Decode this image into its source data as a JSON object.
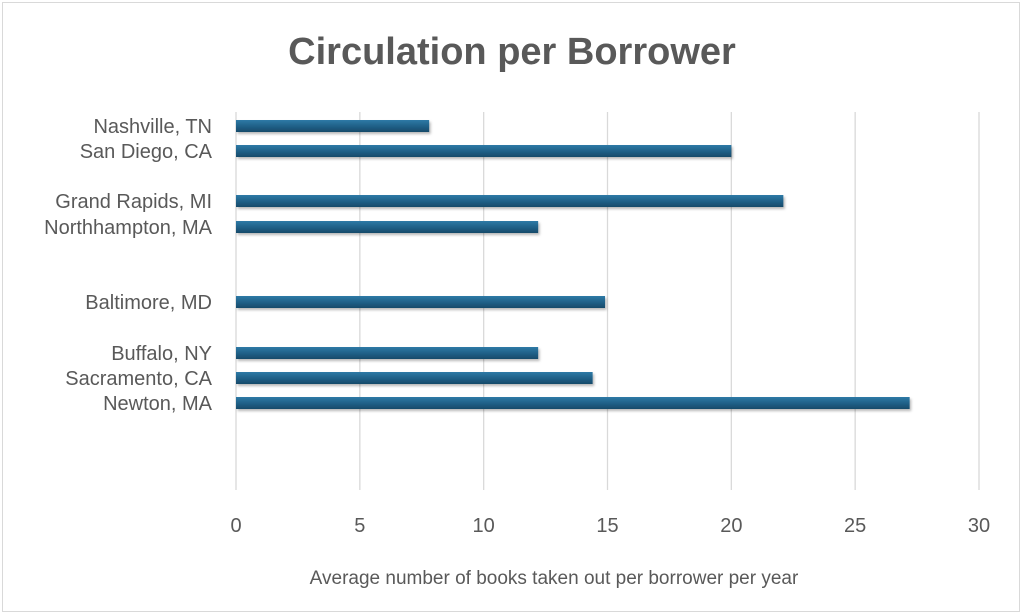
{
  "chart_data": {
    "type": "bar",
    "orientation": "horizontal",
    "title": "Circulation per Borrower",
    "xlabel": "Average number of books taken out per borrower per year",
    "ylabel": "",
    "xlim": [
      0,
      30
    ],
    "xticks": [
      0,
      5,
      10,
      15,
      20,
      25,
      30
    ],
    "grid": true,
    "legend": "none",
    "bar_color": "#1f5f86",
    "categories": [
      "Nashville, TN",
      "San Diego, CA",
      "Grand Rapids, MI",
      "Northhampton, MA",
      "Baltimore, MD",
      "Buffalo, NY",
      "Sacramento, CA",
      "Newton, MA"
    ],
    "values": [
      7.8,
      20.0,
      22.1,
      12.2,
      14.9,
      12.2,
      14.4,
      27.2
    ]
  }
}
